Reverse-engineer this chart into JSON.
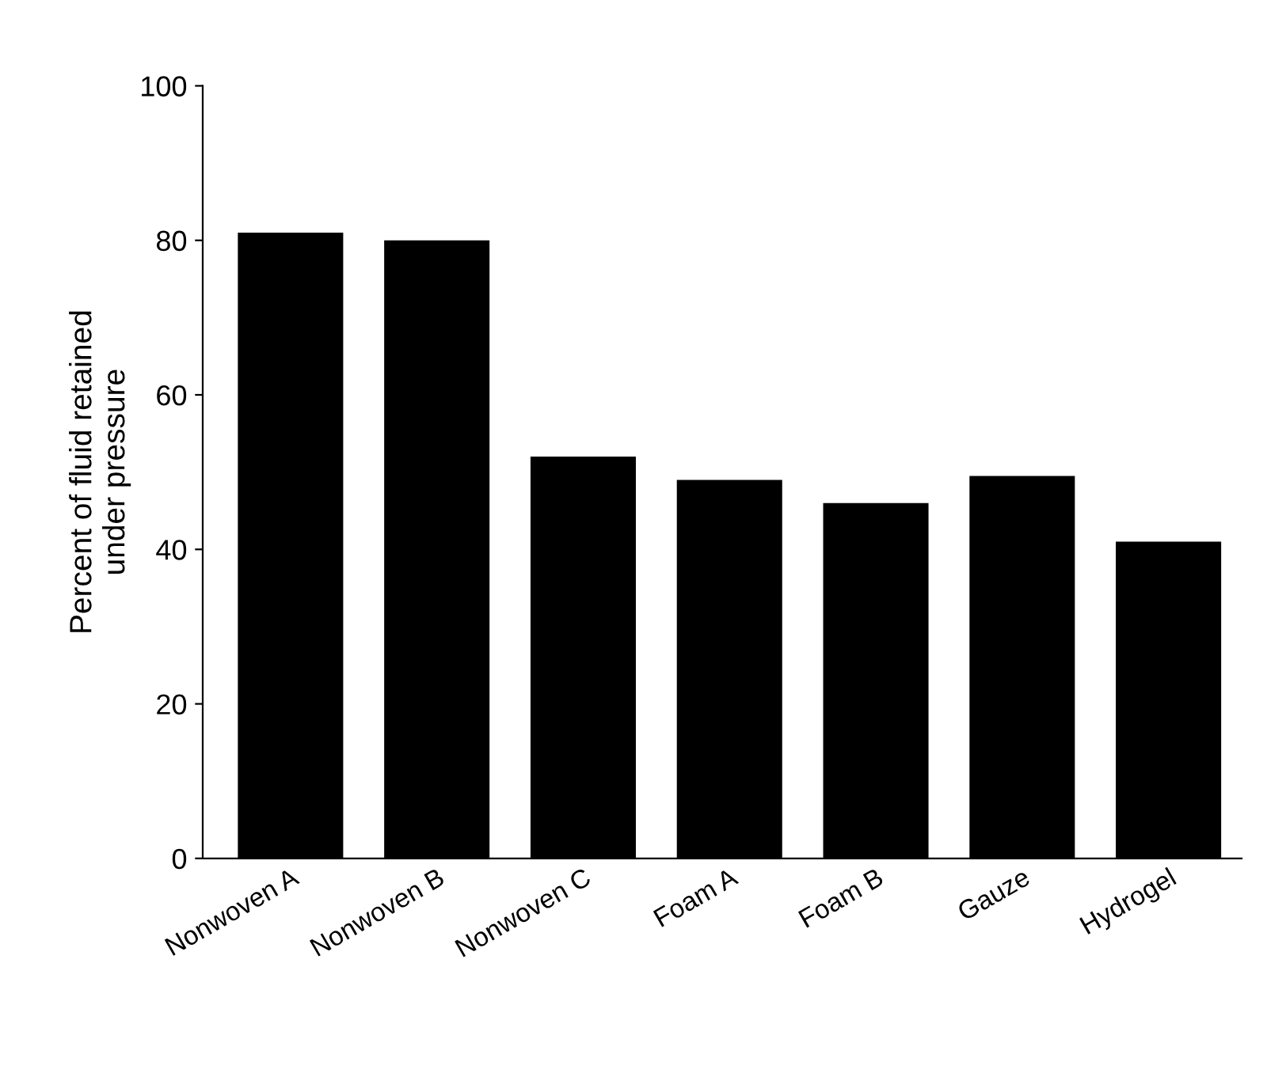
{
  "chart_data": {
    "type": "bar",
    "ylabel": "Percent of fluid retained\nunder pressure",
    "categories": [
      "Nonwoven A",
      "Nonwoven B",
      "Nonwoven C",
      "Foam A",
      "Foam B",
      "Gauze",
      "Hydrogel"
    ],
    "values": [
      81,
      80,
      52,
      49,
      46,
      49.5,
      41
    ],
    "color": "#000000",
    "ylim": [
      0,
      100
    ],
    "yticks": [
      0,
      20,
      40,
      60,
      80,
      100
    ],
    "grid": false,
    "legend": false
  }
}
